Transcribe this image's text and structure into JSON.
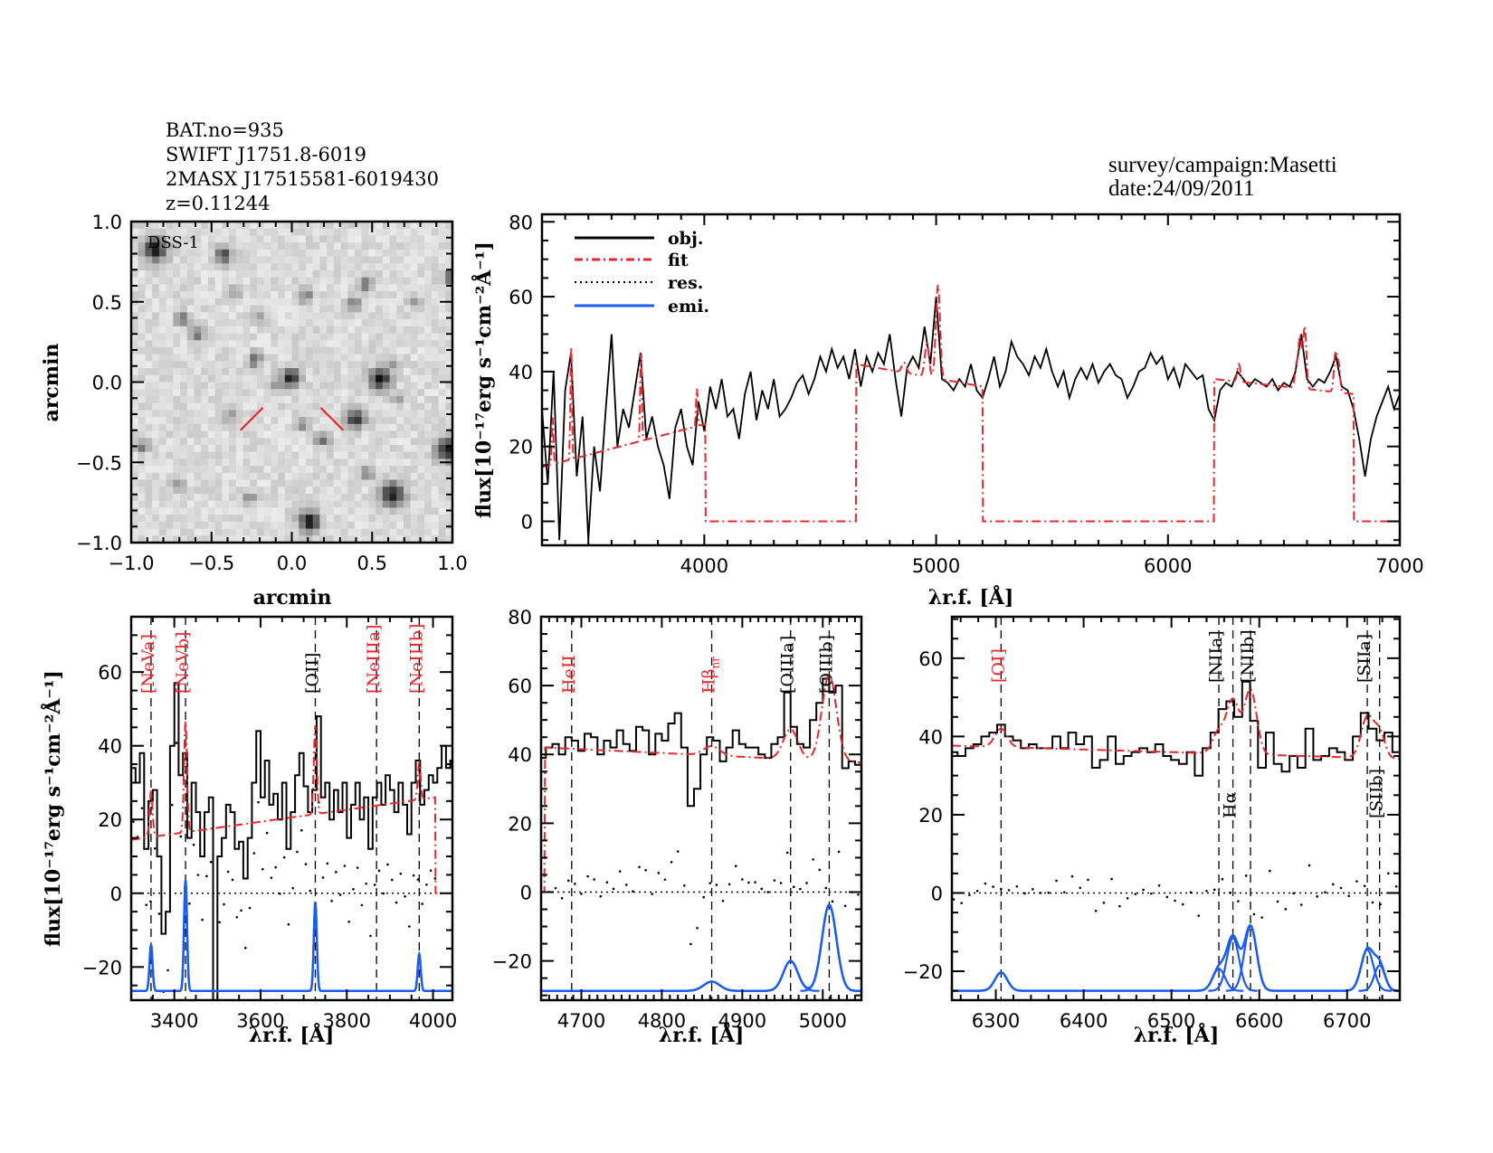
{
  "header": {
    "lines": [
      "BAT.no=935",
      "SWIFT J1751.8-6019",
      "2MASX J17515581-6019430",
      "z=0.11244"
    ],
    "survey": "survey/campaign:Masetti",
    "date": "date:24/09/2011"
  },
  "colors": {
    "obj": "#000000",
    "fit": "#e8262b",
    "res": "#000000",
    "emi": "#1a5cf0",
    "red_label": "#e8262b",
    "black_label": "#000000",
    "marker": "#e8262b"
  },
  "axes": {
    "flux_label": "flux[10⁻¹⁷erg s⁻¹cm⁻²Å⁻¹]",
    "lambda": "λ",
    "lambda_sub": "r.f.",
    "lambda_unit": "[Å]",
    "arcmin": "arcmin"
  },
  "legend": [
    {
      "label": "obj.",
      "style": "solid",
      "color": "#000000"
    },
    {
      "label": "fit",
      "style": "dash-dot",
      "color": "#e8262b"
    },
    {
      "label": "res.",
      "style": "dotted",
      "color": "#000000"
    },
    {
      "label": "emi.",
      "style": "solid",
      "color": "#1a5cf0"
    }
  ],
  "image_panel": {
    "label": "DSS-1",
    "xlim": [
      -1,
      1
    ],
    "ylim": [
      -1,
      1
    ],
    "ticks": [
      -1.0,
      -0.5,
      0.0,
      0.5,
      1.0
    ],
    "tick_labels": [
      "−1.0",
      "−0.5",
      "0.0",
      "0.5",
      "1.0"
    ],
    "xlabel": "arcmin",
    "ylabel": "arcmin",
    "stars": [
      [
        -0.85,
        0.83,
        1.0,
        0.05
      ],
      [
        -0.42,
        0.79,
        0.8,
        0.035
      ],
      [
        -0.01,
        0.03,
        0.9,
        0.04
      ],
      [
        0.55,
        0.02,
        1.0,
        0.045
      ],
      [
        0.4,
        -0.23,
        0.9,
        0.04
      ],
      [
        0.97,
        -0.42,
        1.0,
        0.05
      ],
      [
        0.63,
        -0.7,
        1.0,
        0.05
      ],
      [
        0.11,
        -0.87,
        1.0,
        0.045
      ],
      [
        -0.68,
        0.39,
        0.6,
        0.03
      ],
      [
        -0.59,
        0.29,
        0.6,
        0.03
      ],
      [
        -0.23,
        0.14,
        0.6,
        0.03
      ],
      [
        0.09,
        0.54,
        0.5,
        0.03
      ],
      [
        0.38,
        0.49,
        0.5,
        0.03
      ],
      [
        0.46,
        0.61,
        0.5,
        0.03
      ],
      [
        0.77,
        0.5,
        0.4,
        0.03
      ],
      [
        0.07,
        -0.27,
        0.4,
        0.025
      ],
      [
        0.19,
        -0.36,
        0.6,
        0.03
      ],
      [
        -0.38,
        -0.21,
        0.4,
        0.03
      ],
      [
        -0.93,
        -0.4,
        0.5,
        0.03
      ],
      [
        -0.71,
        -0.64,
        0.4,
        0.03
      ],
      [
        -0.26,
        -0.72,
        0.4,
        0.03
      ],
      [
        0.67,
        -0.1,
        0.4,
        0.025
      ],
      [
        0.98,
        0.65,
        0.6,
        0.03
      ],
      [
        -0.1,
        -0.02,
        0.4,
        0.025
      ],
      [
        0.62,
        0.11,
        0.4,
        0.025
      ],
      [
        -0.21,
        0.4,
        0.4,
        0.025
      ],
      [
        0.47,
        -0.57,
        0.5,
        0.03
      ],
      [
        -0.35,
        0.57,
        0.3,
        0.03
      ]
    ],
    "markers": [
      [
        -0.32,
        -0.3,
        -0.18,
        -0.16
      ],
      [
        0.18,
        -0.16,
        0.32,
        -0.3
      ]
    ]
  },
  "emission_lines": [
    {
      "name": "[NeVa]",
      "sub": "",
      "center": 3346,
      "amp": 12.5,
      "sigma": 3.5,
      "color": "red"
    },
    {
      "name": "[NeVb]",
      "sub": "",
      "center": 3426,
      "amp": 30,
      "sigma": 3.5,
      "color": "red"
    },
    {
      "name": "[OII]",
      "sub": "",
      "center": 3727,
      "amp": 24,
      "sigma": 3.5,
      "color": "black"
    },
    {
      "name": "[NeIIIa]",
      "sub": "",
      "center": 3869,
      "amp": 0,
      "sigma": 3.5,
      "color": "red"
    },
    {
      "name": "[NeIIIb]",
      "sub": "",
      "center": 3968,
      "amp": 10,
      "sigma": 3.5,
      "color": "red"
    },
    {
      "name": "HeII",
      "sub": "",
      "center": 4688,
      "amp": 0,
      "sigma": 8,
      "color": "red"
    },
    {
      "name": "Hβ",
      "sub": "nr",
      "center": 4862,
      "amp": 2.7,
      "sigma": 10,
      "color": "red"
    },
    {
      "name": "[OIIIa]",
      "sub": "",
      "center": 4960,
      "amp": 8.7,
      "sigma": 9,
      "color": "black"
    },
    {
      "name": "[OIIIb]",
      "sub": "",
      "center": 5008,
      "amp": 25,
      "sigma": 9,
      "color": "black"
    },
    {
      "name": "[OI]",
      "sub": "",
      "center": 6306,
      "amp": 4.7,
      "sigma": 7,
      "color": "red"
    },
    {
      "name": "[NIIa]",
      "sub": "",
      "center": 6554,
      "amp": 5.6,
      "sigma": 7,
      "color": "black"
    },
    {
      "name": "Hα",
      "sub": "",
      "center": 6570,
      "amp": 13.5,
      "sigma": 7,
      "color": "black"
    },
    {
      "name": "[NIIb]",
      "sub": "",
      "center": 6590,
      "amp": 16.5,
      "sigma": 7,
      "color": "black"
    },
    {
      "name": "[SIIa]",
      "sub": "",
      "center": 6723,
      "amp": 10.5,
      "sigma": 7,
      "color": "black"
    },
    {
      "name": "[SIIb]",
      "sub": "",
      "center": 6737,
      "amp": 6.5,
      "sigma": 6,
      "color": "black"
    }
  ],
  "fit_windows": [
    {
      "range": [
        3300,
        4005
      ],
      "continuum": [
        14.5,
        26
      ]
    },
    {
      "range": [
        4655,
        5200
      ],
      "continuum": [
        42,
        36
      ]
    },
    {
      "range": [
        6200,
        6800
      ],
      "continuum": [
        38,
        34
      ]
    }
  ],
  "chart_data": [
    {
      "type": "line",
      "id": "full-spectrum",
      "xlabel": "λr.f. [Å]",
      "ylabel": "flux[10⁻¹⁷erg s⁻¹cm⁻²Å⁻¹]",
      "xlim": [
        3300,
        7000
      ],
      "ylim": [
        -6.4,
        82
      ],
      "xticks": [
        4000,
        5000,
        6000,
        7000
      ],
      "xtick_labels": [
        "4000",
        "5000",
        "6000",
        "7000"
      ],
      "xminor": 100,
      "yticks": [
        0,
        20,
        40,
        60,
        80
      ],
      "ytick_labels": [
        "0",
        "20",
        "40",
        "60",
        "80"
      ],
      "yminor": 5,
      "legend": "top-left",
      "obj": {
        "x_start": 3300,
        "x_step": 25,
        "values": [
          30,
          10,
          40,
          -5,
          35,
          45,
          12,
          28,
          -5,
          20,
          8,
          30,
          50,
          20,
          30,
          25,
          35,
          45,
          22,
          28,
          20,
          15,
          6,
          25,
          30,
          20,
          15,
          32,
          24,
          36,
          30,
          38,
          28,
          30,
          22,
          34,
          40,
          27,
          35,
          30,
          38,
          28,
          30,
          33,
          37,
          39,
          34,
          38,
          44,
          40,
          46,
          41,
          44,
          38,
          46,
          36,
          44,
          40,
          45,
          42,
          50,
          38,
          28,
          41,
          44,
          41,
          52,
          42,
          60,
          38,
          37,
          35,
          38,
          36,
          42,
          35,
          33,
          38,
          44,
          36,
          40,
          48,
          44,
          42,
          39,
          44,
          41,
          46,
          40,
          36,
          40,
          33,
          38,
          41,
          38,
          42,
          37,
          40,
          42,
          39,
          38,
          33,
          36,
          40,
          41,
          45,
          42,
          44,
          38,
          41,
          36,
          42,
          40,
          38,
          39,
          30,
          27,
          35,
          37,
          36,
          40,
          38,
          36,
          38,
          37,
          36,
          38,
          35,
          37,
          36,
          40,
          50,
          38,
          36,
          38,
          37,
          40,
          44,
          36,
          35,
          30,
          22,
          12,
          22,
          28,
          32,
          36,
          30,
          34
        ]
      },
      "show_res": false,
      "show_emi": false,
      "show_lines": false
    },
    {
      "type": "line",
      "id": "zoom-blue",
      "xlabel": "λr.f. [Å]",
      "ylabel": "flux[10⁻¹⁷erg s⁻¹cm⁻²Å⁻¹]",
      "xlim": [
        3300,
        4045
      ],
      "ylim": [
        -29,
        75
      ],
      "xticks": [
        3400,
        3600,
        3800,
        4000
      ],
      "xtick_labels": [
        "3400",
        "3600",
        "3800",
        "4000"
      ],
      "xminor": 50,
      "yticks": [
        -20,
        0,
        20,
        40,
        60
      ],
      "ytick_labels": [
        "−20",
        "0",
        "20",
        "40",
        "60"
      ],
      "yminor": 5,
      "obj": {
        "x_start": 3305,
        "x_step": 10,
        "values": [
          34,
          30,
          38,
          12,
          25,
          28,
          10,
          -11,
          -5,
          40,
          57,
          32,
          38,
          15,
          30,
          22,
          10,
          22,
          26,
          -29,
          10,
          15,
          24,
          22,
          12,
          14,
          4,
          15,
          30,
          44,
          26,
          36,
          24,
          27,
          20,
          30,
          12,
          22,
          32,
          38,
          29,
          22,
          28,
          48,
          26,
          30,
          20,
          28,
          22,
          30,
          15,
          24,
          30,
          20,
          26,
          12,
          26,
          30,
          24,
          32,
          28,
          22,
          30,
          24,
          16,
          30,
          36,
          24,
          28,
          32,
          30,
          34,
          40,
          34,
          36
        ]
      },
      "emi_offset": -26.5,
      "show_res": true,
      "show_emi": true,
      "show_lines": true
    },
    {
      "type": "line",
      "id": "zoom-hbeta",
      "xlabel": "λr.f. [Å]",
      "ylabel": "",
      "xlim": [
        4650,
        5048
      ],
      "ylim": [
        -31.4,
        80
      ],
      "xticks": [
        4700,
        4800,
        4900,
        5000
      ],
      "xtick_labels": [
        "4700",
        "4800",
        "4900",
        "5000"
      ],
      "xminor": 10,
      "yticks": [
        -20,
        0,
        20,
        40,
        60,
        80
      ],
      "ytick_labels": [
        "−20",
        "0",
        "20",
        "40",
        "60",
        "80"
      ],
      "yminor": 5,
      "obj": {
        "x_start": 4652,
        "x_step": 8,
        "values": [
          39,
          42,
          43,
          40,
          45,
          44,
          41,
          46,
          45,
          40,
          44,
          42,
          47,
          43,
          41,
          48,
          47,
          40,
          46,
          44,
          49,
          52,
          42,
          25,
          30,
          40,
          45,
          44,
          38,
          42,
          47,
          43,
          42,
          42,
          40,
          39,
          43,
          45,
          58,
          48,
          43,
          42,
          50,
          55,
          62,
          58,
          60,
          36,
          38,
          37
        ]
      },
      "emi_offset": -28.7,
      "show_res": true,
      "show_emi": true,
      "show_lines": true
    },
    {
      "type": "line",
      "id": "zoom-halpha",
      "xlabel": "λr.f. [Å]",
      "ylabel": "",
      "xlim": [
        6250,
        6760
      ],
      "ylim": [
        -27.4,
        70.6
      ],
      "xticks": [
        6300,
        6400,
        6500,
        6600,
        6700
      ],
      "xtick_labels": [
        "6300",
        "6400",
        "6500",
        "6600",
        "6700"
      ],
      "xminor": 20,
      "yticks": [
        -20,
        0,
        20,
        40,
        60
      ],
      "ytick_labels": [
        "−20",
        "0",
        "20",
        "40",
        "60"
      ],
      "yminor": 5,
      "obj": {
        "x_start": 6252,
        "x_step": 9,
        "values": [
          36,
          35,
          37,
          38,
          40,
          41,
          43,
          40,
          39,
          37,
          38,
          37,
          37,
          40,
          37,
          41,
          38,
          40,
          32,
          34,
          40,
          33,
          35,
          36,
          37,
          36,
          38,
          35,
          34,
          33,
          36,
          30,
          37,
          41,
          47,
          49,
          45,
          54,
          44,
          32,
          41,
          33,
          31,
          35,
          32,
          42,
          34,
          35,
          37,
          36,
          34,
          40,
          46,
          42,
          39,
          41,
          36
        ]
      },
      "emi_offset": -25,
      "show_res": true,
      "show_emi": true,
      "show_lines": true
    }
  ]
}
